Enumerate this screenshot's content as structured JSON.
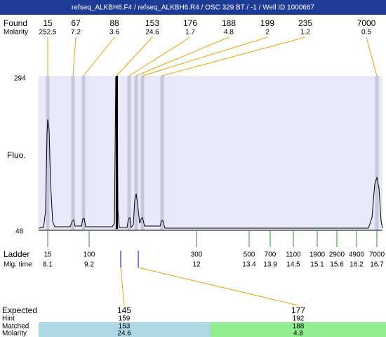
{
  "header": {
    "title": "refseq_ALKBH6.F4 / refseq_ALKBH6.R4 / OSC 329 BT / -1 / Well ID 1000667"
  },
  "found": {
    "label": "Found",
    "molarity_label": "Molarity",
    "peaks": [
      {
        "size": "15",
        "molarity": "252.5"
      },
      {
        "size": "67",
        "molarity": "7.2"
      },
      {
        "size": "88",
        "molarity": "3.6"
      },
      {
        "size": "153",
        "molarity": "24.6"
      },
      {
        "size": "176",
        "molarity": "1.7"
      },
      {
        "size": "188",
        "molarity": "4.8"
      },
      {
        "size": "199",
        "molarity": "2"
      },
      {
        "size": "235",
        "molarity": "1.2"
      },
      {
        "size": "7000",
        "molarity": "0.5"
      }
    ]
  },
  "plot": {
    "y_top": "294",
    "y_bottom": "48",
    "y_label": "Fluo."
  },
  "ladder": {
    "label": "Ladder",
    "mig_label": "Mig. time",
    "entries": [
      {
        "size": "15",
        "time": "8.1"
      },
      {
        "size": "100",
        "time": "9.2"
      },
      {
        "size": "300",
        "time": "12"
      },
      {
        "size": "500",
        "time": "13.4"
      },
      {
        "size": "700",
        "time": "13.9"
      },
      {
        "size": "1100",
        "time": "14.5"
      },
      {
        "size": "1900",
        "time": "15.1"
      },
      {
        "size": "2900",
        "time": "15.6"
      },
      {
        "size": "4900",
        "time": "16.2"
      },
      {
        "size": "7000",
        "time": "16.7"
      }
    ]
  },
  "expected": {
    "labels": [
      "Expected",
      "Hint",
      "Matched",
      "Molarity"
    ],
    "entries": [
      {
        "expected": "145",
        "hint": "159",
        "matched": "153",
        "molarity": "24.6"
      },
      {
        "expected": "177",
        "hint": "192",
        "matched": "188",
        "molarity": "4.8"
      }
    ]
  }
}
